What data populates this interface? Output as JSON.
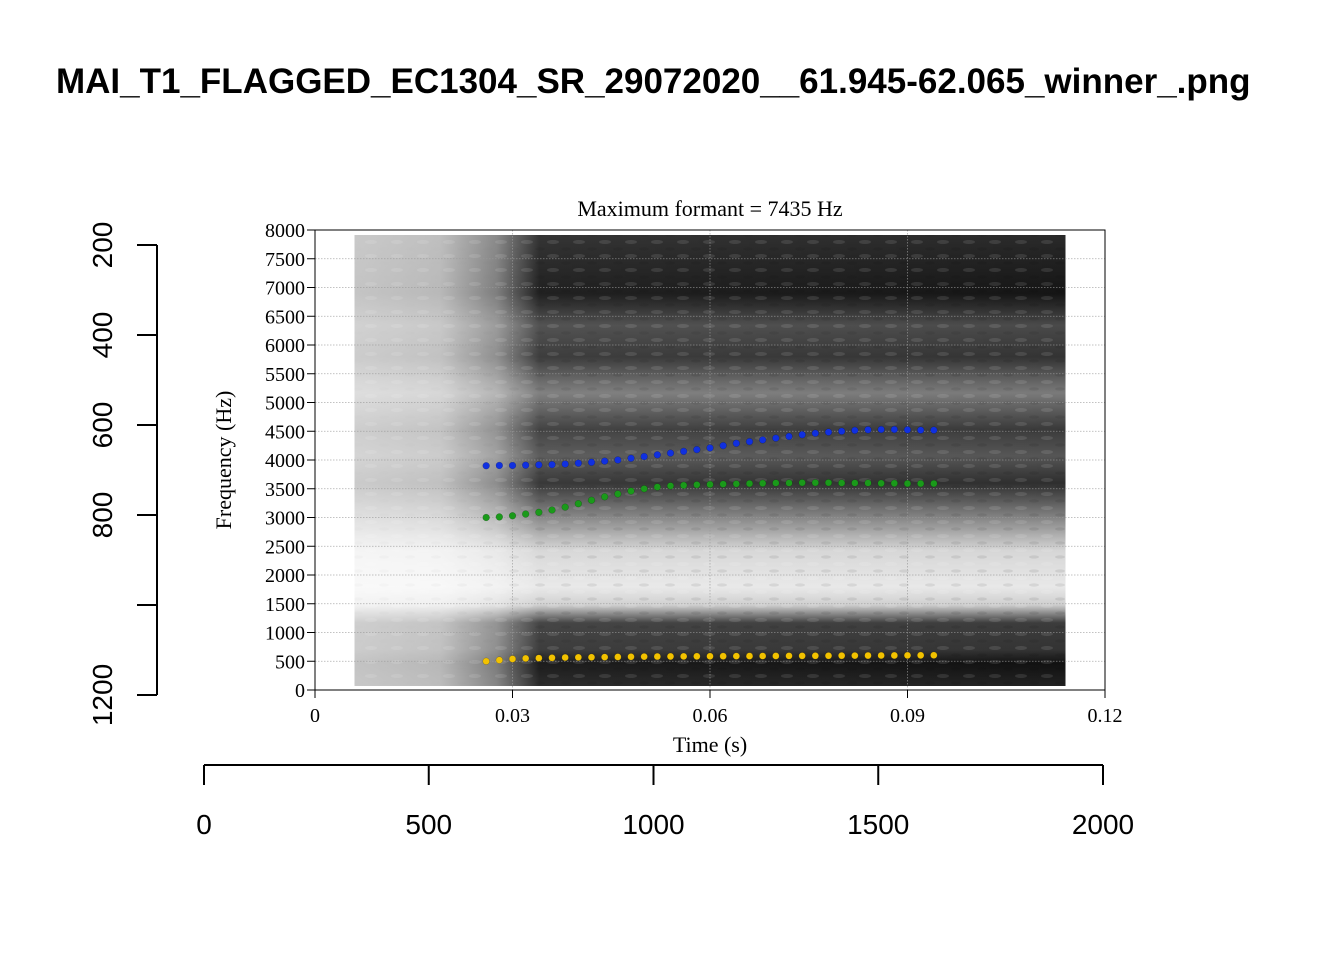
{
  "page": {
    "title": "MAI_T1_FLAGGED_EC1304_SR_29072020__61.945-62.065_winner_.png"
  },
  "outer_axes": {
    "left": {
      "ticks": [
        200,
        400,
        600,
        800,
        1000,
        1200
      ],
      "tick_labels": [
        "200",
        "400",
        "600",
        "800",
        "",
        "1200"
      ]
    },
    "bottom": {
      "ticks": [
        0,
        500,
        1000,
        1500,
        2000
      ],
      "tick_labels": [
        "0",
        "500",
        "1000",
        "1500",
        "2000"
      ]
    }
  },
  "chart_data": {
    "type": "scatter",
    "title": "Maximum formant  =  7435 Hz",
    "xlabel": "Time (s)",
    "ylabel": "Frequency (Hz)",
    "xlim": [
      0,
      0.12
    ],
    "ylim": [
      0,
      8000
    ],
    "x_ticks": [
      0,
      0.03,
      0.06,
      0.09,
      0.12
    ],
    "x_tick_labels": [
      "0",
      "0.03",
      "0.06",
      "0.09",
      "0.12"
    ],
    "y_ticks": [
      0,
      500,
      1000,
      1500,
      2000,
      2500,
      3000,
      3500,
      4000,
      4500,
      5000,
      5500,
      6000,
      6500,
      7000,
      7500,
      8000
    ],
    "y_tick_labels": [
      "0",
      "500",
      "1000",
      "1500",
      "2000",
      "2500",
      "3000",
      "3500",
      "4000",
      "4500",
      "5000",
      "5500",
      "6000",
      "6500",
      "7000",
      "7500",
      "8000"
    ],
    "grid": true,
    "background": "grayscale spectrogram",
    "spectrogram_time_range": [
      0.006,
      0.114
    ],
    "x": [
      0.026,
      0.028,
      0.03,
      0.032,
      0.034,
      0.036,
      0.038,
      0.04,
      0.042,
      0.044,
      0.046,
      0.048,
      0.05,
      0.052,
      0.054,
      0.056,
      0.058,
      0.06,
      0.062,
      0.064,
      0.066,
      0.068,
      0.07,
      0.072,
      0.074,
      0.076,
      0.078,
      0.08,
      0.082,
      0.084,
      0.086,
      0.088,
      0.09,
      0.092,
      0.094
    ],
    "series": [
      {
        "color": "#f2c200",
        "values": [
          500,
          520,
          540,
          550,
          555,
          560,
          565,
          568,
          570,
          572,
          575,
          578,
          580,
          582,
          584,
          585,
          586,
          587,
          588,
          589,
          590,
          591,
          592,
          593,
          594,
          595,
          596,
          597,
          598,
          599,
          600,
          601,
          602,
          603,
          604
        ]
      },
      {
        "color": "#1a9a1a",
        "values": [
          3000,
          3010,
          3030,
          3060,
          3090,
          3130,
          3180,
          3240,
          3300,
          3360,
          3410,
          3460,
          3500,
          3530,
          3550,
          3560,
          3570,
          3575,
          3580,
          3585,
          3590,
          3595,
          3600,
          3600,
          3605,
          3605,
          3605,
          3600,
          3600,
          3600,
          3595,
          3595,
          3590,
          3590,
          3590
        ]
      },
      {
        "color": "#1030e0",
        "values": [
          3900,
          3905,
          3905,
          3910,
          3915,
          3920,
          3930,
          3945,
          3960,
          3980,
          4000,
          4030,
          4060,
          4090,
          4120,
          4150,
          4180,
          4210,
          4250,
          4290,
          4320,
          4350,
          4380,
          4410,
          4440,
          4465,
          4485,
          4500,
          4515,
          4525,
          4530,
          4530,
          4525,
          4520,
          4520
        ]
      }
    ]
  }
}
